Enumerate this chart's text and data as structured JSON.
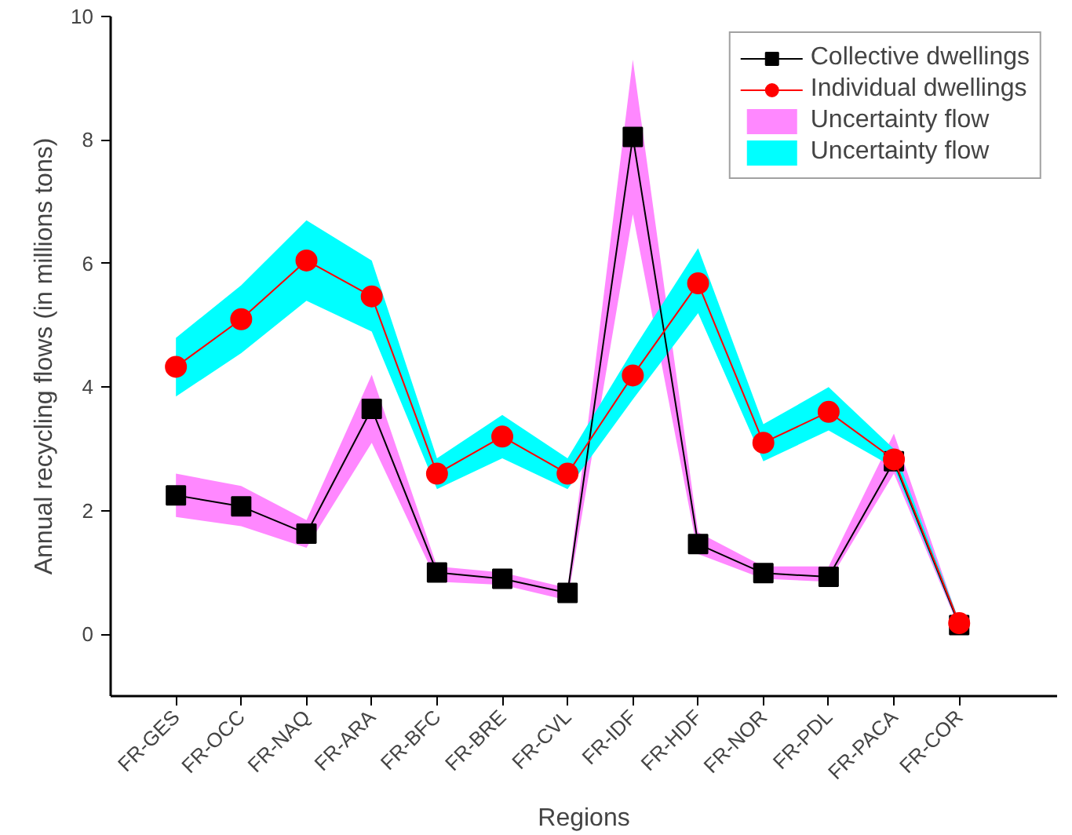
{
  "chart_data": {
    "type": "line",
    "xlabel": "Regions",
    "ylabel": "Annual recycling flows (in millions tons)",
    "categories": [
      "FR-GES",
      "FR-OCC",
      "FR-NAQ",
      "FR-ARA",
      "FR-BFC",
      "FR-BRE",
      "FR-CVL",
      "FR-IDF",
      "FR-HDF",
      "FR-NOR",
      "FR-PDL",
      "FR-PACA",
      "FR-COR"
    ],
    "series": [
      {
        "name": "Collective dwellings",
        "color": "#000000",
        "marker": "square",
        "values": [
          2.25,
          2.07,
          1.63,
          3.65,
          1.0,
          0.9,
          0.67,
          8.05,
          1.46,
          0.99,
          0.93,
          2.8,
          0.15
        ]
      },
      {
        "name": "Individual dwellings",
        "color": "#ff0000",
        "marker": "circle",
        "values": [
          4.33,
          5.1,
          6.05,
          5.47,
          2.6,
          3.2,
          2.6,
          4.19,
          5.68,
          3.1,
          3.6,
          2.83,
          0.18
        ]
      },
      {
        "name": "Uncertainty flow",
        "type": "area",
        "color": "#ff88ff",
        "values": [
          null,
          null,
          null,
          null,
          null,
          null,
          null,
          null,
          null,
          null,
          null,
          null,
          null
        ],
        "lower": [
          1.9,
          1.75,
          1.4,
          3.1,
          0.85,
          0.8,
          0.55,
          6.8,
          1.3,
          0.9,
          0.85,
          2.6,
          0.1
        ],
        "upper": [
          2.6,
          2.4,
          1.85,
          4.2,
          1.1,
          1.0,
          0.75,
          9.3,
          1.65,
          1.1,
          1.1,
          3.25,
          0.2
        ]
      },
      {
        "name": "Uncertainty flow",
        "type": "area",
        "color": "#00ffff",
        "values": [
          null,
          null,
          null,
          null,
          null,
          null,
          null,
          null,
          null,
          null,
          null,
          null,
          null
        ],
        "lower": [
          3.85,
          4.55,
          5.4,
          4.9,
          2.35,
          2.85,
          2.35,
          3.8,
          5.2,
          2.8,
          3.3,
          2.7,
          0.12
        ],
        "upper": [
          4.8,
          5.65,
          6.7,
          6.05,
          2.85,
          3.55,
          2.85,
          4.6,
          6.25,
          3.4,
          4.0,
          3.0,
          0.22
        ]
      }
    ],
    "ylim": [
      -1,
      10
    ],
    "yticks": [
      0,
      2,
      4,
      6,
      8,
      10
    ],
    "grid": false,
    "legend": "top right",
    "line_style": "solid"
  }
}
